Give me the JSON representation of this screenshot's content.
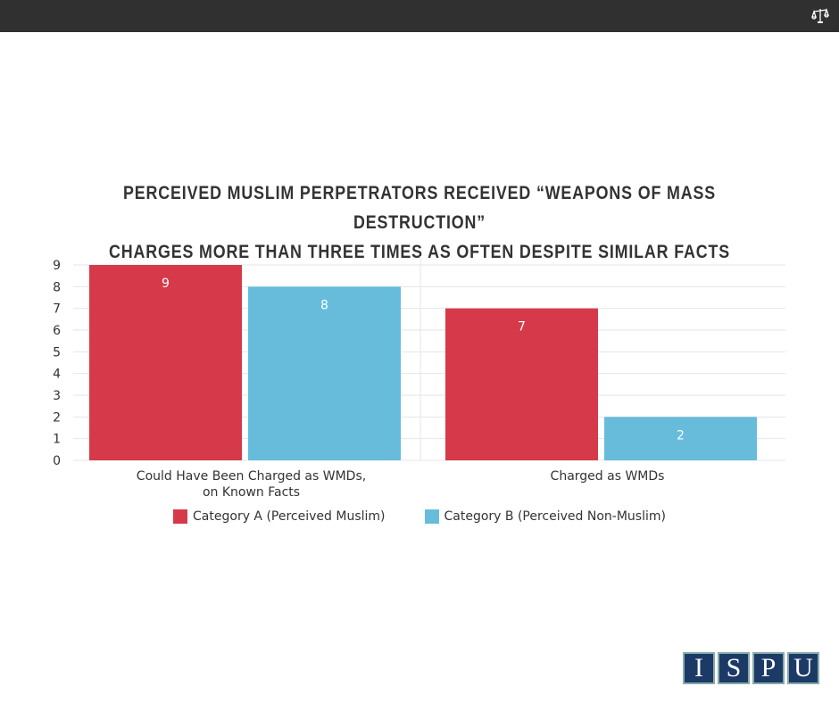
{
  "header": {
    "icon": "scales-of-justice-icon"
  },
  "chart_data": {
    "type": "bar",
    "title_lines": [
      "PERCEIVED MUSLIM PERPETRATORS RECEIVED “WEAPONS OF MASS DESTRUCTION”",
      "CHARGES MORE THAN THREE TIMES AS OFTEN DESPITE SIMILAR FACTS"
    ],
    "categories": [
      [
        "Could Have Been Charged as WMDs,",
        "on Known Facts"
      ],
      [
        "Charged as WMDs"
      ]
    ],
    "series": [
      {
        "name": "Category A (Perceived Muslim)",
        "color": "#d63a4a",
        "values": [
          9,
          7
        ]
      },
      {
        "name": "Category B (Perceived Non-Muslim)",
        "color": "#67bcdc",
        "values": [
          8,
          2
        ]
      }
    ],
    "yticks": [
      "0",
      "1",
      "2",
      "3",
      "4",
      "5",
      "6",
      "7",
      "8",
      "9"
    ],
    "ylim": [
      0,
      9
    ],
    "grid": true,
    "legend": "bottom-center"
  },
  "logo": {
    "letters": [
      "I",
      "S",
      "P",
      "U"
    ]
  }
}
